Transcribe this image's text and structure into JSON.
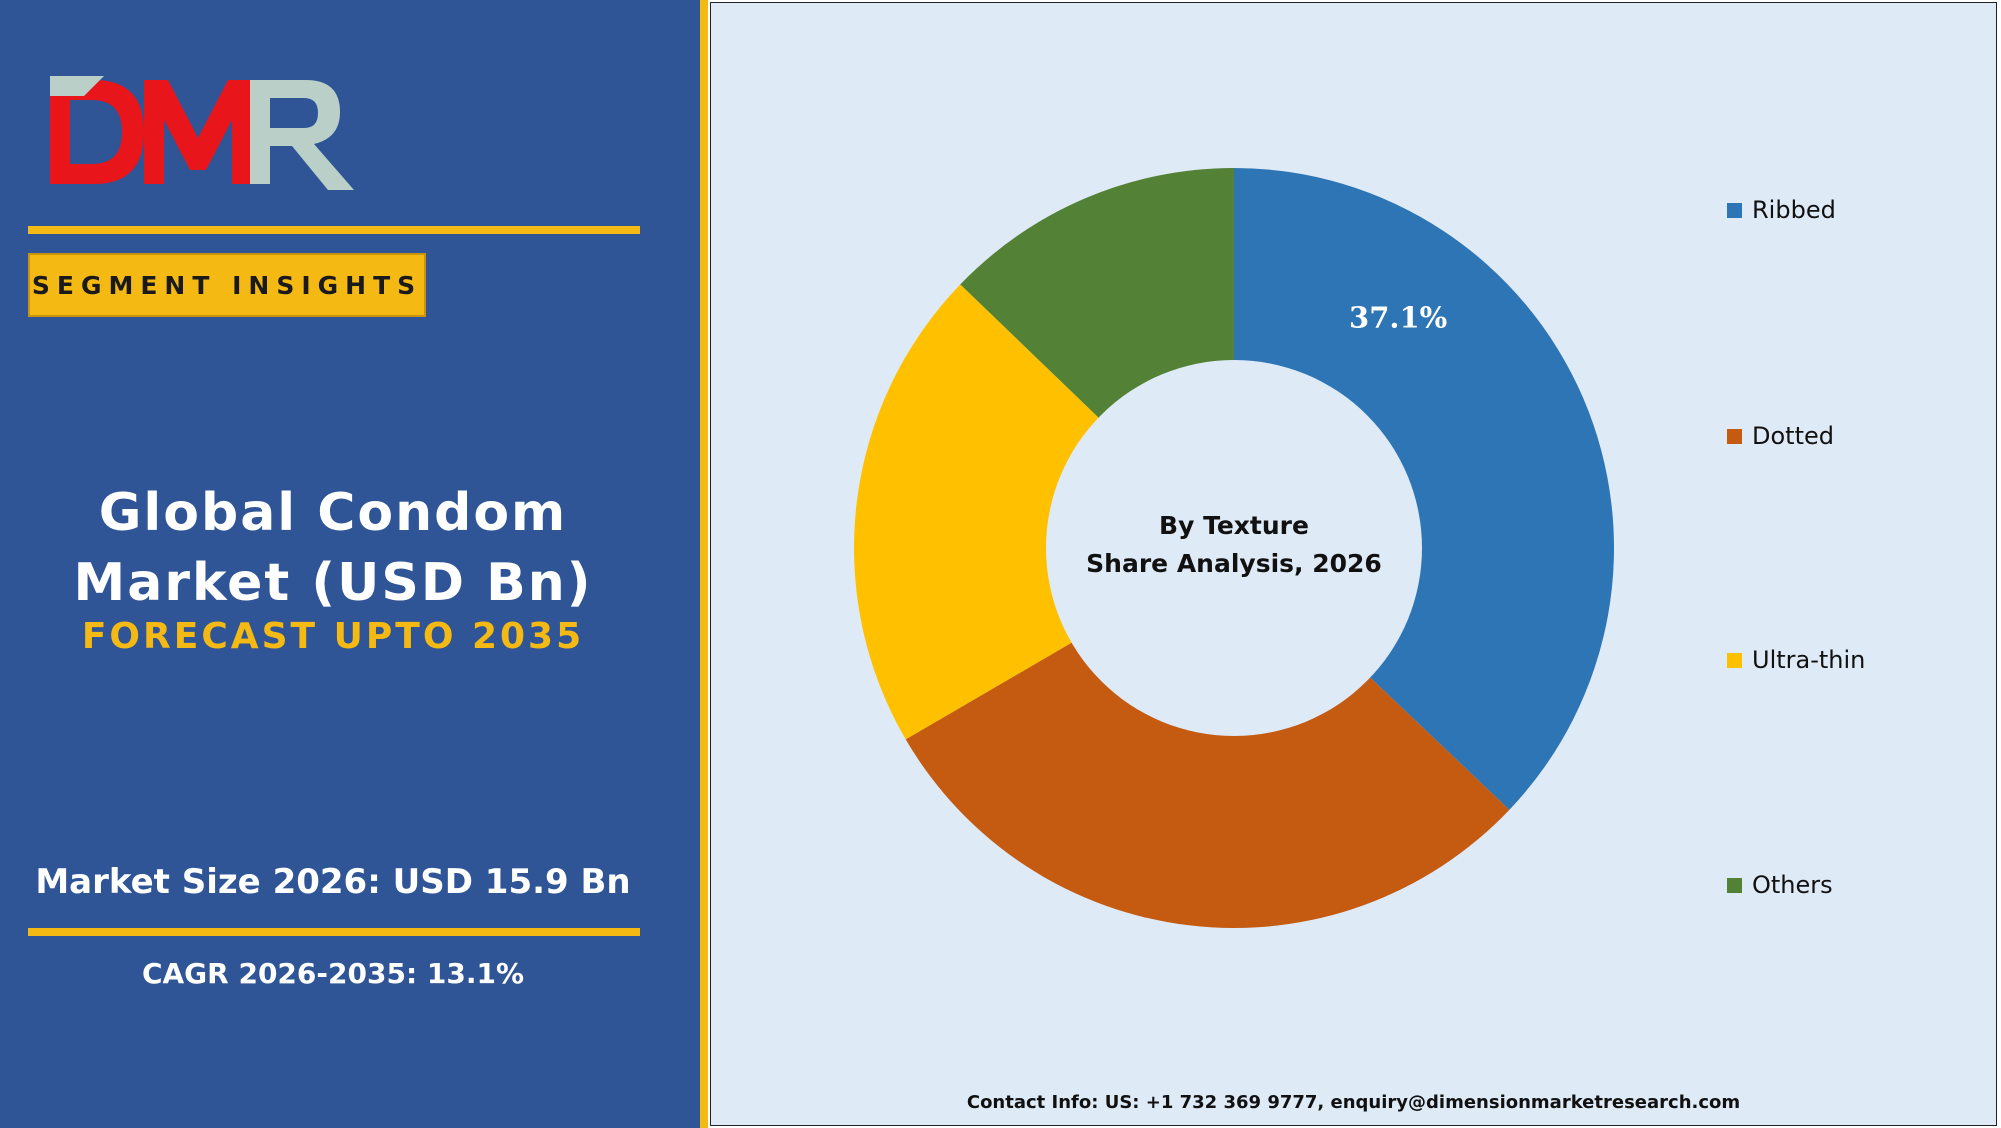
{
  "brand": {
    "logo_text": "DMR",
    "logo_colors": {
      "D": "#e8151b",
      "M": "#e8151b",
      "R": "#b9cfc7",
      "accent": "#b9cfc7"
    }
  },
  "left_panel": {
    "badge": "SEGMENT INSIGHTS",
    "title_line1": "Global Condom",
    "title_line2": "Market (USD Bn)",
    "subtitle": "FORECAST UPTO 2035",
    "market_size": "Market Size 2026: USD 15.9 Bn",
    "cagr": "CAGR 2026-2035: 13.1%"
  },
  "colors": {
    "panel_blue": "#2f5597",
    "gold": "#f5b914",
    "chart_bg": "#deeaf6"
  },
  "chart_data": {
    "type": "pie",
    "subtype": "donut",
    "center_label_line1": "By Texture",
    "center_label_line2": "Share Analysis, 2026",
    "categories": [
      "Ribbed",
      "Dotted",
      "Ultra-thin",
      "Others"
    ],
    "values": [
      37.1,
      29.5,
      20.6,
      12.8
    ],
    "colors": [
      "#2e75b6",
      "#c55a11",
      "#ffc000",
      "#538135"
    ],
    "data_labels": [
      "37.1%",
      "",
      "",
      ""
    ],
    "legend_position": "right"
  },
  "footer": {
    "contact": "Contact Info: US: +1 732 369 9777, enquiry@dimensionmarketresearch.com"
  }
}
